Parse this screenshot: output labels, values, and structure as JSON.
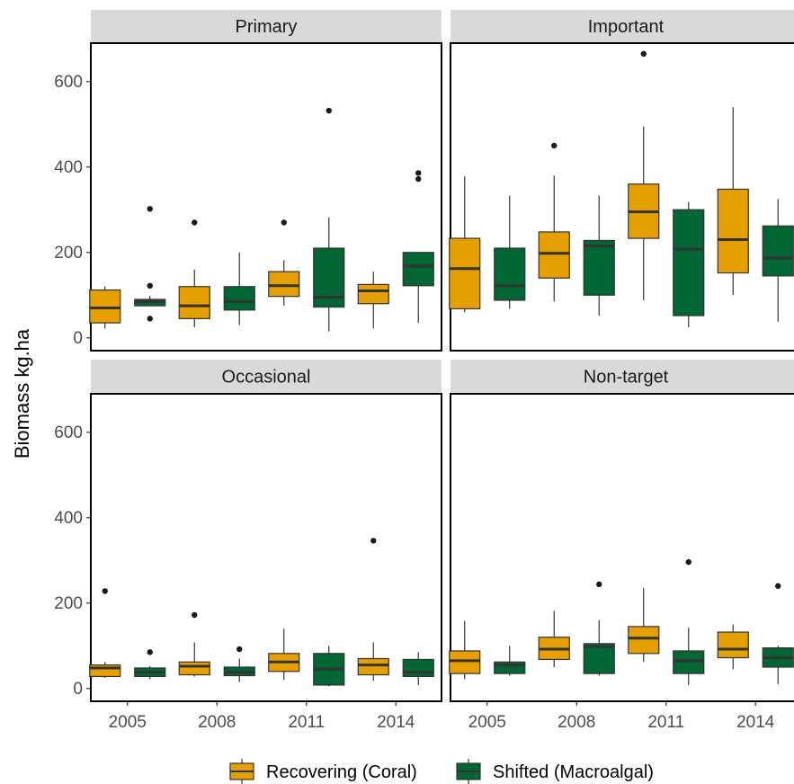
{
  "chart_data": {
    "type": "box",
    "ylabel": "Biomass kg.ha",
    "xlabel": "",
    "ylim": [
      -30,
      690
    ],
    "yticks": [
      0,
      200,
      400,
      600
    ],
    "xticks": [
      "2005",
      "2008",
      "2011",
      "2014"
    ],
    "series_names": [
      "Recovering (Coral)",
      "Shifted (Macroalgal)"
    ],
    "colors": {
      "Recovering (Coral)": "#E69F00",
      "Shifted (Macroalgal)": "#006633"
    },
    "legend_position": "bottom",
    "panels": [
      {
        "title": "Primary",
        "boxes": [
          {
            "group": "Recovering (Coral)",
            "year": "2005",
            "min": 22,
            "q1": 35,
            "median": 70,
            "q3": 112,
            "max": 120,
            "outliers": []
          },
          {
            "group": "Shifted (Macroalgal)",
            "year": "2005",
            "min": 75,
            "q1": 75,
            "median": 85,
            "q3": 90,
            "max": 98,
            "outliers": [
              45,
              122,
              302
            ]
          },
          {
            "group": "Recovering (Coral)",
            "year": "2008",
            "min": 25,
            "q1": 45,
            "median": 75,
            "q3": 120,
            "max": 160,
            "outliers": [
              270
            ]
          },
          {
            "group": "Shifted (Macroalgal)",
            "year": "2008",
            "min": 30,
            "q1": 65,
            "median": 85,
            "q3": 120,
            "max": 200,
            "outliers": []
          },
          {
            "group": "Recovering (Coral)",
            "year": "2011",
            "min": 75,
            "q1": 97,
            "median": 122,
            "q3": 155,
            "max": 182,
            "outliers": [
              270
            ]
          },
          {
            "group": "Shifted (Macroalgal)",
            "year": "2011",
            "min": 15,
            "q1": 72,
            "median": 95,
            "q3": 210,
            "max": 282,
            "outliers": [
              532
            ]
          },
          {
            "group": "Recovering (Coral)",
            "year": "2014",
            "min": 22,
            "q1": 80,
            "median": 110,
            "q3": 125,
            "max": 155,
            "outliers": []
          },
          {
            "group": "Shifted (Macroalgal)",
            "year": "2014",
            "min": 35,
            "q1": 122,
            "median": 168,
            "q3": 200,
            "max": 200,
            "outliers": [
              372,
              386
            ]
          }
        ]
      },
      {
        "title": "Important",
        "boxes": [
          {
            "group": "Recovering (Coral)",
            "year": "2005",
            "min": 60,
            "q1": 68,
            "median": 162,
            "q3": 233,
            "max": 378,
            "outliers": []
          },
          {
            "group": "Shifted (Macroalgal)",
            "year": "2005",
            "min": 68,
            "q1": 88,
            "median": 122,
            "q3": 210,
            "max": 333,
            "outliers": []
          },
          {
            "group": "Recovering (Coral)",
            "year": "2008",
            "min": 85,
            "q1": 140,
            "median": 198,
            "q3": 248,
            "max": 380,
            "outliers": [
              450
            ]
          },
          {
            "group": "Shifted (Macroalgal)",
            "year": "2008",
            "min": 52,
            "q1": 100,
            "median": 215,
            "q3": 228,
            "max": 333,
            "outliers": []
          },
          {
            "group": "Recovering (Coral)",
            "year": "2011",
            "min": 88,
            "q1": 233,
            "median": 295,
            "q3": 360,
            "max": 495,
            "outliers": [
              665
            ]
          },
          {
            "group": "Shifted (Macroalgal)",
            "year": "2011",
            "min": 25,
            "q1": 52,
            "median": 208,
            "q3": 300,
            "max": 318,
            "outliers": []
          },
          {
            "group": "Recovering (Coral)",
            "year": "2014",
            "min": 100,
            "q1": 152,
            "median": 230,
            "q3": 348,
            "max": 540,
            "outliers": []
          },
          {
            "group": "Shifted (Macroalgal)",
            "year": "2014",
            "min": 38,
            "q1": 145,
            "median": 187,
            "q3": 262,
            "max": 325,
            "outliers": []
          }
        ]
      },
      {
        "title": "Occasional",
        "boxes": [
          {
            "group": "Recovering (Coral)",
            "year": "2005",
            "min": 25,
            "q1": 28,
            "median": 48,
            "q3": 55,
            "max": 62,
            "outliers": [
              228
            ]
          },
          {
            "group": "Shifted (Macroalgal)",
            "year": "2005",
            "min": 22,
            "q1": 28,
            "median": 38,
            "q3": 48,
            "max": 52,
            "outliers": [
              85
            ]
          },
          {
            "group": "Recovering (Coral)",
            "year": "2008",
            "min": 28,
            "q1": 32,
            "median": 52,
            "q3": 62,
            "max": 108,
            "outliers": [
              172
            ]
          },
          {
            "group": "Shifted (Macroalgal)",
            "year": "2008",
            "min": 15,
            "q1": 30,
            "median": 38,
            "q3": 50,
            "max": 70,
            "outliers": [
              92
            ]
          },
          {
            "group": "Recovering (Coral)",
            "year": "2011",
            "min": 20,
            "q1": 40,
            "median": 62,
            "q3": 82,
            "max": 140,
            "outliers": []
          },
          {
            "group": "Shifted (Macroalgal)",
            "year": "2011",
            "min": 5,
            "q1": 8,
            "median": 45,
            "q3": 82,
            "max": 100,
            "outliers": []
          },
          {
            "group": "Recovering (Coral)",
            "year": "2014",
            "min": 18,
            "q1": 32,
            "median": 55,
            "q3": 70,
            "max": 108,
            "outliers": [
              346
            ]
          },
          {
            "group": "Shifted (Macroalgal)",
            "year": "2014",
            "min": 8,
            "q1": 28,
            "median": 38,
            "q3": 68,
            "max": 85,
            "outliers": []
          }
        ]
      },
      {
        "title": "Non-target",
        "boxes": [
          {
            "group": "Recovering (Coral)",
            "year": "2005",
            "min": 22,
            "q1": 35,
            "median": 65,
            "q3": 88,
            "max": 158,
            "outliers": []
          },
          {
            "group": "Shifted (Macroalgal)",
            "year": "2005",
            "min": 30,
            "q1": 35,
            "median": 55,
            "q3": 62,
            "max": 100,
            "outliers": []
          },
          {
            "group": "Recovering (Coral)",
            "year": "2008",
            "min": 50,
            "q1": 68,
            "median": 92,
            "q3": 120,
            "max": 182,
            "outliers": []
          },
          {
            "group": "Shifted (Macroalgal)",
            "year": "2008",
            "min": 30,
            "q1": 35,
            "median": 98,
            "q3": 105,
            "max": 160,
            "outliers": [
              244
            ]
          },
          {
            "group": "Recovering (Coral)",
            "year": "2011",
            "min": 62,
            "q1": 82,
            "median": 118,
            "q3": 145,
            "max": 235,
            "outliers": []
          },
          {
            "group": "Shifted (Macroalgal)",
            "year": "2011",
            "min": 8,
            "q1": 35,
            "median": 65,
            "q3": 88,
            "max": 142,
            "outliers": [
              296
            ]
          },
          {
            "group": "Recovering (Coral)",
            "year": "2014",
            "min": 45,
            "q1": 72,
            "median": 92,
            "q3": 132,
            "max": 150,
            "outliers": []
          },
          {
            "group": "Shifted (Macroalgal)",
            "year": "2014",
            "min": 10,
            "q1": 50,
            "median": 72,
            "q3": 95,
            "max": 100,
            "outliers": [
              240
            ]
          }
        ]
      }
    ]
  }
}
